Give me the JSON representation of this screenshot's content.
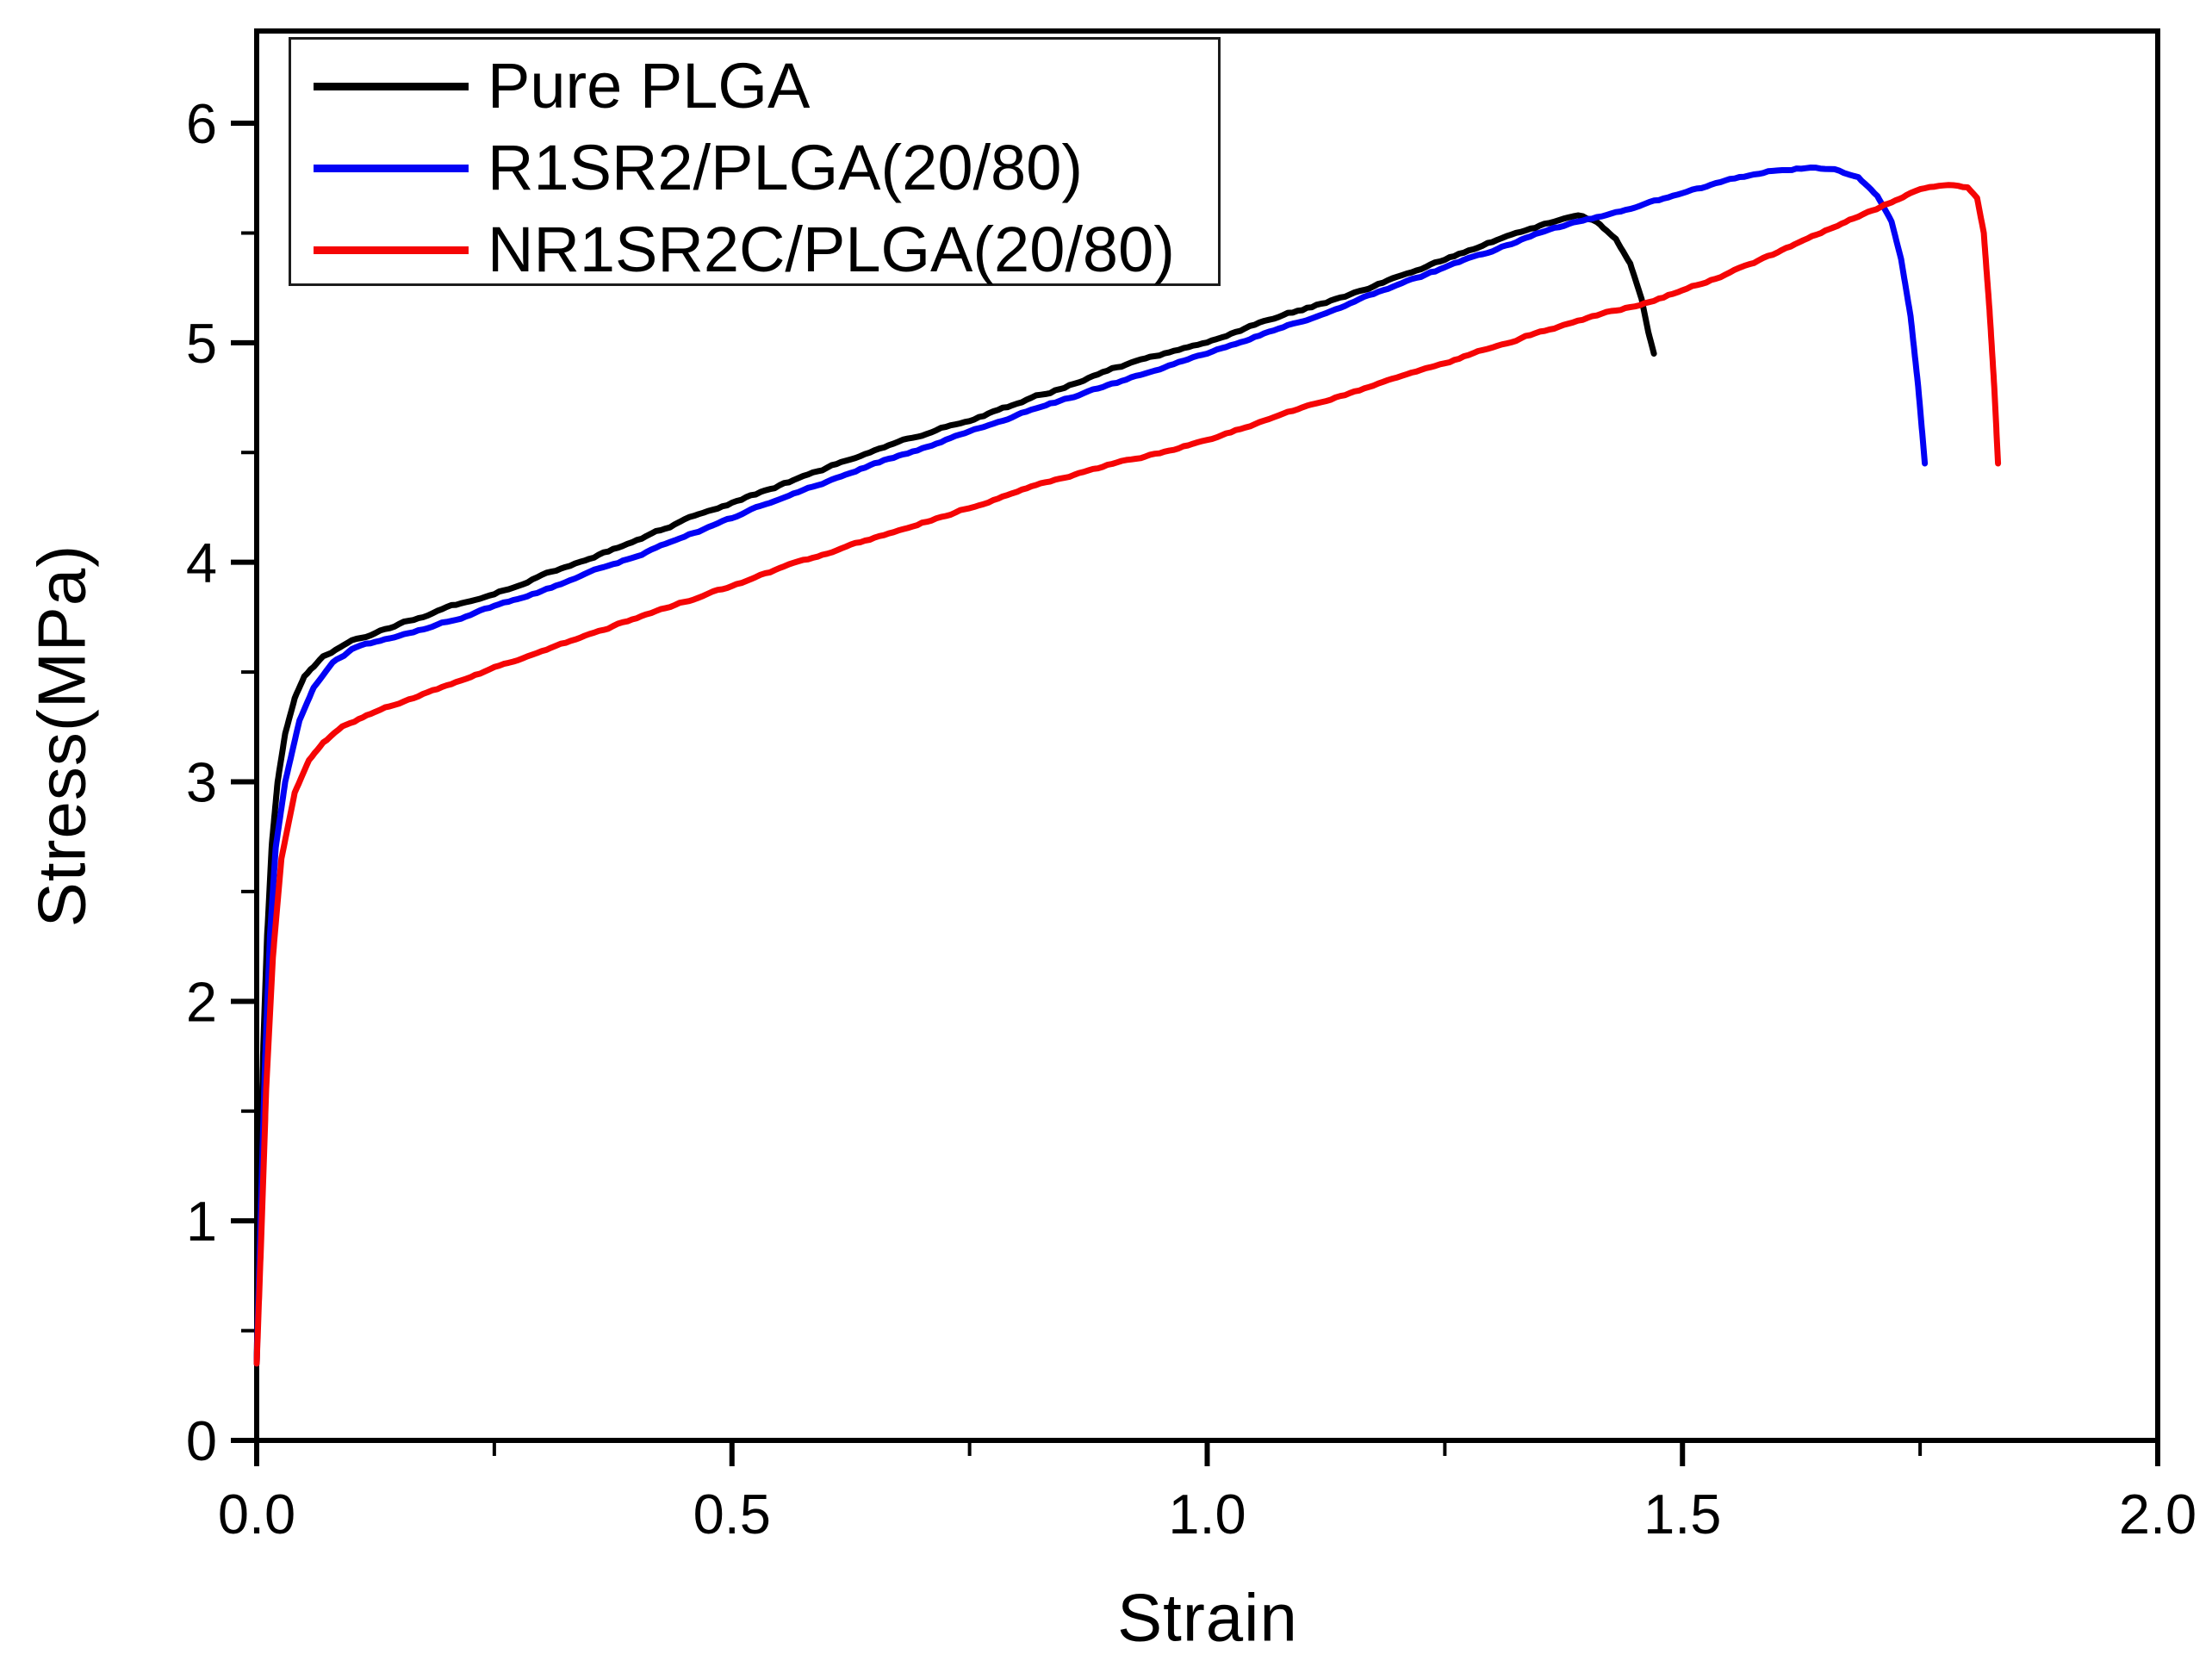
{
  "chart_data": {
    "type": "line",
    "title": "",
    "xlabel": "Strain",
    "ylabel": "Stress(MPa)",
    "xlim": [
      0.0,
      2.0
    ],
    "ylim": [
      0,
      6.42
    ],
    "x_ticks": [
      0.0,
      0.5,
      1.0,
      1.5,
      2.0
    ],
    "x_tick_labels": [
      "0.0",
      "0.5",
      "1.0",
      "1.5",
      "2.0"
    ],
    "x_minor_ticks": [
      0.25,
      0.75,
      1.25,
      1.75
    ],
    "y_ticks": [
      0,
      1,
      2,
      3,
      4,
      5,
      6
    ],
    "y_tick_labels": [
      "0",
      "1",
      "2",
      "3",
      "4",
      "5",
      "6"
    ],
    "y_minor_ticks": [
      0.5,
      1.5,
      2.5,
      3.5,
      4.5,
      5.5
    ],
    "grid": false,
    "legend_position": "top-left",
    "axis_color": "#000000",
    "series": [
      {
        "name": "Pure PLGA",
        "color": "#000000",
        "points": [
          [
            0.0,
            0.35
          ],
          [
            0.003,
            1.05
          ],
          [
            0.007,
            1.8
          ],
          [
            0.011,
            2.3
          ],
          [
            0.016,
            2.72
          ],
          [
            0.022,
            3.0
          ],
          [
            0.03,
            3.22
          ],
          [
            0.04,
            3.38
          ],
          [
            0.05,
            3.48
          ],
          [
            0.07,
            3.57
          ],
          [
            0.1,
            3.64
          ],
          [
            0.15,
            3.72
          ],
          [
            0.2,
            3.79
          ],
          [
            0.25,
            3.86
          ],
          [
            0.3,
            3.94
          ],
          [
            0.35,
            4.02
          ],
          [
            0.4,
            4.1
          ],
          [
            0.45,
            4.19
          ],
          [
            0.5,
            4.27
          ],
          [
            0.55,
            4.35
          ],
          [
            0.6,
            4.43
          ],
          [
            0.65,
            4.51
          ],
          [
            0.7,
            4.58
          ],
          [
            0.75,
            4.65
          ],
          [
            0.8,
            4.72
          ],
          [
            0.85,
            4.8
          ],
          [
            0.9,
            4.88
          ],
          [
            0.95,
            4.94
          ],
          [
            1.0,
            5.0
          ],
          [
            1.05,
            5.08
          ],
          [
            1.1,
            5.15
          ],
          [
            1.15,
            5.22
          ],
          [
            1.2,
            5.3
          ],
          [
            1.25,
            5.38
          ],
          [
            1.3,
            5.46
          ],
          [
            1.34,
            5.52
          ],
          [
            1.37,
            5.56
          ],
          [
            1.39,
            5.58
          ],
          [
            1.41,
            5.55
          ],
          [
            1.43,
            5.47
          ],
          [
            1.445,
            5.36
          ],
          [
            1.457,
            5.2
          ],
          [
            1.464,
            5.05
          ],
          [
            1.47,
            4.95
          ]
        ]
      },
      {
        "name": "R1SR2/PLGA(20/80)",
        "color": "#0202f5",
        "points": [
          [
            0.0,
            0.35
          ],
          [
            0.004,
            1.0
          ],
          [
            0.009,
            1.75
          ],
          [
            0.014,
            2.3
          ],
          [
            0.02,
            2.7
          ],
          [
            0.03,
            3.0
          ],
          [
            0.045,
            3.28
          ],
          [
            0.06,
            3.43
          ],
          [
            0.08,
            3.54
          ],
          [
            0.1,
            3.6
          ],
          [
            0.15,
            3.67
          ],
          [
            0.2,
            3.73
          ],
          [
            0.25,
            3.8
          ],
          [
            0.3,
            3.87
          ],
          [
            0.35,
            3.95
          ],
          [
            0.4,
            4.03
          ],
          [
            0.45,
            4.12
          ],
          [
            0.5,
            4.2
          ],
          [
            0.55,
            4.29
          ],
          [
            0.6,
            4.37
          ],
          [
            0.65,
            4.45
          ],
          [
            0.7,
            4.52
          ],
          [
            0.75,
            4.6
          ],
          [
            0.8,
            4.67
          ],
          [
            0.85,
            4.74
          ],
          [
            0.9,
            4.81
          ],
          [
            0.95,
            4.88
          ],
          [
            1.0,
            4.95
          ],
          [
            1.05,
            5.03
          ],
          [
            1.1,
            5.1
          ],
          [
            1.15,
            5.18
          ],
          [
            1.2,
            5.26
          ],
          [
            1.25,
            5.34
          ],
          [
            1.3,
            5.42
          ],
          [
            1.35,
            5.5
          ],
          [
            1.4,
            5.56
          ],
          [
            1.45,
            5.62
          ],
          [
            1.5,
            5.68
          ],
          [
            1.55,
            5.74
          ],
          [
            1.6,
            5.79
          ],
          [
            1.63,
            5.8
          ],
          [
            1.66,
            5.79
          ],
          [
            1.685,
            5.75
          ],
          [
            1.705,
            5.67
          ],
          [
            1.72,
            5.55
          ],
          [
            1.73,
            5.38
          ],
          [
            1.74,
            5.12
          ],
          [
            1.748,
            4.8
          ],
          [
            1.755,
            4.45
          ]
        ]
      },
      {
        "name": "NR1SR2C/PLGA(20/80)",
        "color": "#f50505",
        "points": [
          [
            0.0,
            0.35
          ],
          [
            0.005,
            0.95
          ],
          [
            0.01,
            1.6
          ],
          [
            0.017,
            2.2
          ],
          [
            0.026,
            2.65
          ],
          [
            0.04,
            2.95
          ],
          [
            0.055,
            3.1
          ],
          [
            0.07,
            3.18
          ],
          [
            0.09,
            3.25
          ],
          [
            0.12,
            3.31
          ],
          [
            0.15,
            3.36
          ],
          [
            0.2,
            3.44
          ],
          [
            0.25,
            3.52
          ],
          [
            0.3,
            3.59
          ],
          [
            0.35,
            3.67
          ],
          [
            0.4,
            3.75
          ],
          [
            0.45,
            3.82
          ],
          [
            0.5,
            3.89
          ],
          [
            0.55,
            3.97
          ],
          [
            0.6,
            4.04
          ],
          [
            0.65,
            4.11
          ],
          [
            0.7,
            4.18
          ],
          [
            0.75,
            4.25
          ],
          [
            0.8,
            4.32
          ],
          [
            0.85,
            4.39
          ],
          [
            0.9,
            4.45
          ],
          [
            0.95,
            4.5
          ],
          [
            1.0,
            4.56
          ],
          [
            1.05,
            4.63
          ],
          [
            1.1,
            4.7
          ],
          [
            1.15,
            4.77
          ],
          [
            1.2,
            4.84
          ],
          [
            1.25,
            4.91
          ],
          [
            1.3,
            4.98
          ],
          [
            1.35,
            5.05
          ],
          [
            1.4,
            5.11
          ],
          [
            1.45,
            5.17
          ],
          [
            1.5,
            5.24
          ],
          [
            1.55,
            5.32
          ],
          [
            1.6,
            5.41
          ],
          [
            1.65,
            5.51
          ],
          [
            1.68,
            5.57
          ],
          [
            1.7,
            5.6
          ],
          [
            1.72,
            5.64
          ],
          [
            1.74,
            5.68
          ],
          [
            1.76,
            5.71
          ],
          [
            1.78,
            5.72
          ],
          [
            1.8,
            5.71
          ],
          [
            1.81,
            5.66
          ],
          [
            1.817,
            5.5
          ],
          [
            1.823,
            5.15
          ],
          [
            1.828,
            4.8
          ],
          [
            1.832,
            4.45
          ]
        ]
      }
    ]
  }
}
